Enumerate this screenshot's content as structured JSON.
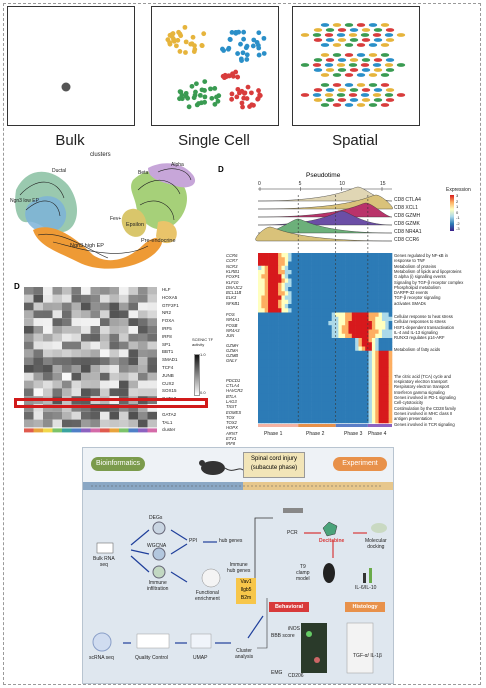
{
  "top_panels": {
    "bulk_label": "Bulk",
    "single_cell_label": "Single Cell",
    "spatial_label": "Spatial"
  },
  "umap": {
    "title": "clusters",
    "clusters": [
      "Epsilon",
      "Alpha",
      "Beta",
      "Ductal",
      "Ngn3 low EP",
      "Ngn3 high EP",
      "Fev+",
      "Pre-endocrine"
    ]
  },
  "heatmap": {
    "label": "D",
    "genes": [
      "HLF",
      "HOXA5",
      "GTF2F1",
      "NR2",
      "FOXA",
      "IRF5",
      "IRF8",
      "SP1",
      "BBT1",
      "SMAD1",
      "TCF4",
      "JUNB",
      "CUX2",
      "SOX15",
      "GATA3",
      "FOXO3",
      "GATA2",
      "TAL1",
      "cluster"
    ],
    "highlighted_gene": "GATA3",
    "legend_title": "SCENIC TF activity",
    "legend_max": "1.0",
    "legend_min": "0.0"
  },
  "pseudotime": {
    "label": "D",
    "title": "Pseudotime",
    "ticks": [
      "0",
      "5",
      "10",
      "15"
    ],
    "ridge_labels": [
      "CD8 CTLA4",
      "CD8 XCL1",
      "CD8 GZMH",
      "CD8 GZMK",
      "CD8 NR4A1",
      "CD8 CCR6"
    ],
    "legend_title": "Expression",
    "legend_values": [
      "3",
      "2",
      "1",
      "0",
      "-1",
      "-2",
      "-3"
    ],
    "gene_groups": [
      [
        "CCR6",
        "CCR7",
        "NCR3",
        "KLRB1",
        "FOXP1",
        "KLF10",
        "DNAJC2",
        "BCL11B",
        "ELK3",
        "NFKB1"
      ],
      [
        "FOS",
        "NR4A1",
        "FOSB",
        "NR4A3",
        "JUN"
      ],
      [
        "GZMH",
        "GZMA",
        "GZMB",
        "GNLY"
      ],
      [
        "PDCD1",
        "CTLA4",
        "HAVCR2",
        "BTLA",
        "LAG3",
        "TIGIT",
        "EOMES",
        "TOX",
        "TOX2",
        "HOPX",
        "ARNT",
        "ETV1",
        "IRF8"
      ]
    ],
    "pathways": [
      [
        "Genes regulated by NF-κB in",
        "response to TNF",
        "Metabolism of proteins",
        "Metabolism of lipids and lipoproteins",
        "G alpha (i) signalling events",
        "Signaling by TGF-β receptor complex",
        "Phospholipid metabolism",
        "DARPP-32 events",
        "TGF-β receptor signaling",
        "activates SMADs"
      ],
      [
        "Cellular response to heat stress",
        "Cellular responses to stress",
        "HSF1-dependent transactivation",
        "IL-4 and IL-13 signaling",
        "RUNX3 regulates p14-ARF"
      ],
      [
        "Metabolism of fatty acids"
      ],
      [
        "The citric acid (TCA) cycle and",
        "respiratory electron transport",
        "Respiratory electron transport",
        "Interferon gamma signaling",
        "Genes involved in PD-1 signaling",
        "Cell-cytotoxicity",
        "Costimulation by the CD28 family",
        "Genes involved in MHC class II",
        "antigen presentation",
        "Genes involved in TCR signaling"
      ]
    ],
    "phases": [
      "Phase 1",
      "Phase 2",
      "Phase 3",
      "Phase 4"
    ]
  },
  "workflow": {
    "bioinformatics_label": "Bioinformatics",
    "spinal_label_1": "Spinal cord injury",
    "spinal_label_2": "(subacute phase)",
    "experiment_label": "Experiment",
    "degs": "DEGs",
    "bulk_rna_1": "Bulk RNA",
    "bulk_rna_2": "seq",
    "wgcna": "WGCNA",
    "ppi": "PPI",
    "hub_genes": "hub genes",
    "immune_infiltration_1": "Immune",
    "immune_infiltration_2": "infiltration",
    "immune_hub_1": "Immune",
    "immune_hub_2": "hub genes",
    "hub_gene_list": [
      "Vav1",
      "Ilgb5",
      "B2m"
    ],
    "functional_1": "Functional",
    "functional_2": "enrichment",
    "pcr": "PCR",
    "decitabine": "Decitabine",
    "molecular_1": "Molecular",
    "molecular_2": "docking",
    "t9_1": "T9",
    "t9_2": "clamp",
    "t9_3": "model",
    "behavioral": "Behavioral",
    "histology": "Histology",
    "il_ratio": "IL-6/IL-10",
    "tgf": "TGF-α/ IL-1β",
    "scrna": "scRNA seq",
    "qc": "Quality Control",
    "umap": "UMAP",
    "cluster_1": "Cluster",
    "cluster_2": "analysis",
    "bbb": "BBB score",
    "emg": "EMG",
    "inos": "iNOS",
    "cd206": "CD206"
  },
  "colors": {
    "orange_pill": "#e8914a",
    "green_pill": "#7b9b4c",
    "red_tag": "#d83a3a",
    "workflow_bg": "#dfe7ef",
    "highlight_box": "#d11a1a"
  }
}
